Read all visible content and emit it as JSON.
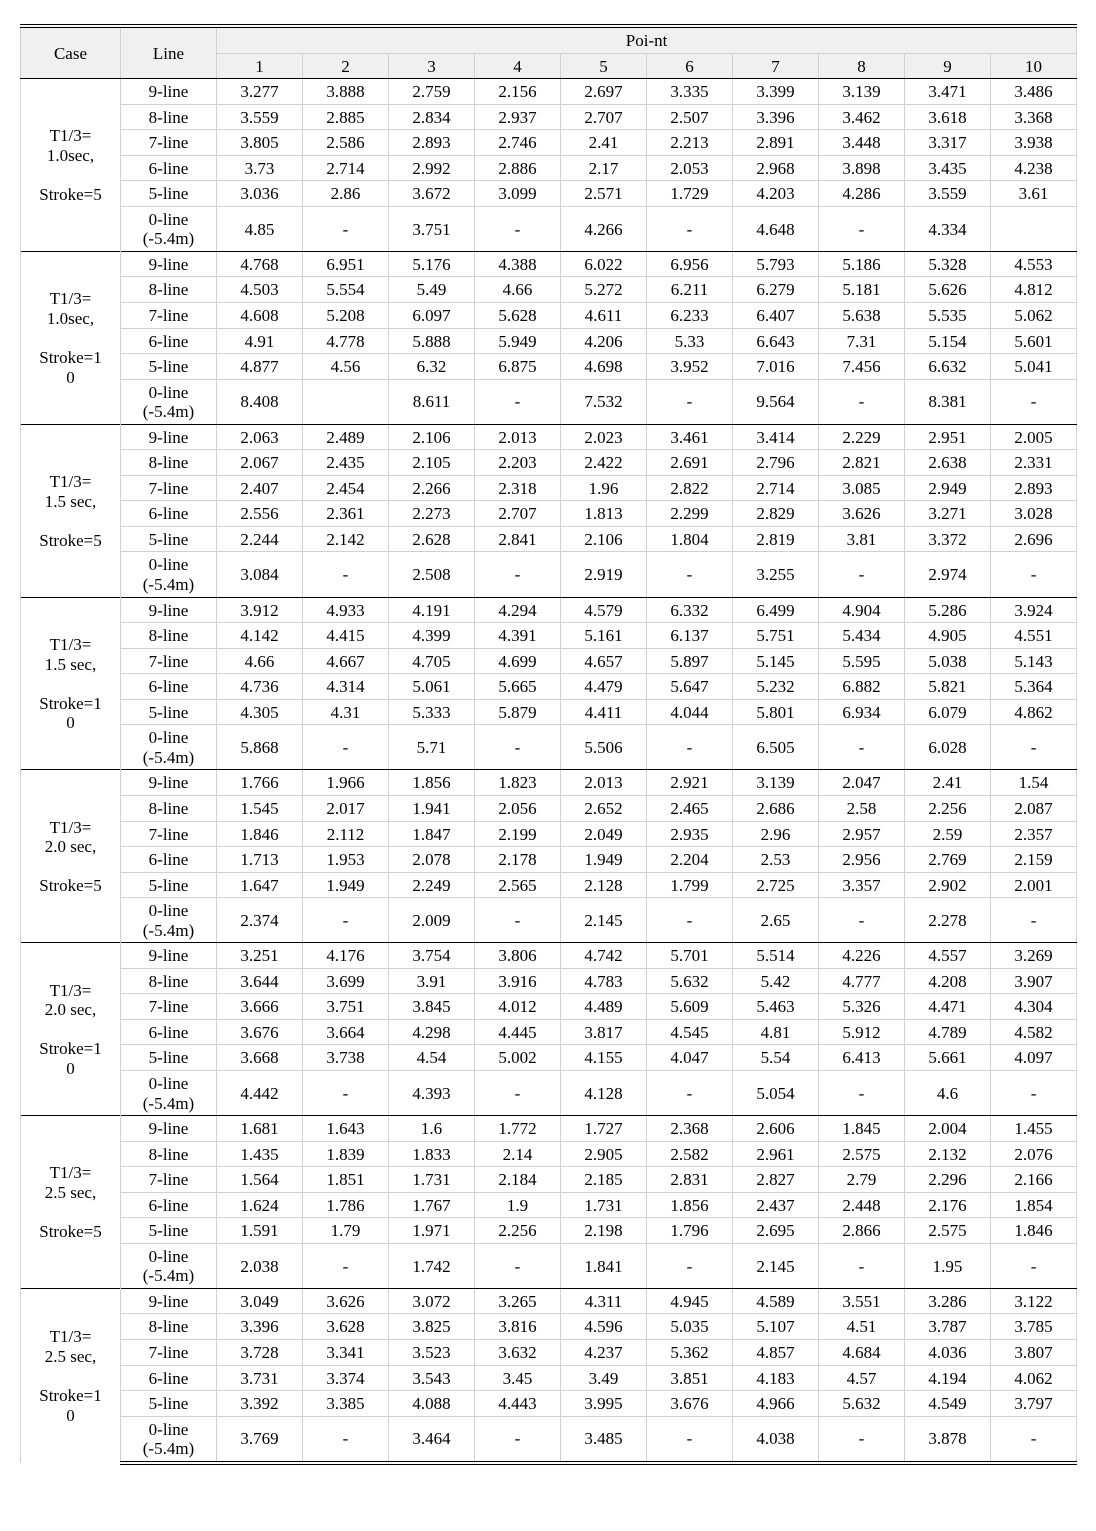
{
  "headers": {
    "case": "Case",
    "line": "Line",
    "point": "Poi-nt",
    "points": [
      "1",
      "2",
      "3",
      "4",
      "5",
      "6",
      "7",
      "8",
      "9",
      "10"
    ]
  },
  "line_labels": {
    "l9": "9-line",
    "l8": "8-line",
    "l7": "7-line",
    "l6": "6-line",
    "l5": "5-line",
    "l0a": "0-line",
    "l0b": "(-5.4m)"
  },
  "dash": "-",
  "groups": [
    {
      "case_lines": [
        "T1/3=",
        "1.0sec,",
        "",
        "Stroke=5"
      ],
      "rows": [
        {
          "line": "l9",
          "v": [
            "3.277",
            "3.888",
            "2.759",
            "2.156",
            "2.697",
            "3.335",
            "3.399",
            "3.139",
            "3.471",
            "3.486"
          ]
        },
        {
          "line": "l8",
          "v": [
            "3.559",
            "2.885",
            "2.834",
            "2.937",
            "2.707",
            "2.507",
            "3.396",
            "3.462",
            "3.618",
            "3.368"
          ]
        },
        {
          "line": "l7",
          "v": [
            "3.805",
            "2.586",
            "2.893",
            "2.746",
            "2.41",
            "2.213",
            "2.891",
            "3.448",
            "3.317",
            "3.938"
          ]
        },
        {
          "line": "l6",
          "v": [
            "3.73",
            "2.714",
            "2.992",
            "2.886",
            "2.17",
            "2.053",
            "2.968",
            "3.898",
            "3.435",
            "4.238"
          ]
        },
        {
          "line": "l5",
          "v": [
            "3.036",
            "2.86",
            "3.672",
            "3.099",
            "2.571",
            "1.729",
            "4.203",
            "4.286",
            "3.559",
            "3.61"
          ]
        },
        {
          "line": "l0",
          "v": [
            "4.85",
            "-",
            "3.751",
            "-",
            "4.266",
            "-",
            "4.648",
            "-",
            "4.334",
            ""
          ]
        }
      ]
    },
    {
      "case_lines": [
        "T1/3=",
        "1.0sec,",
        "",
        "Stroke=1",
        "0"
      ],
      "rows": [
        {
          "line": "l9",
          "v": [
            "4.768",
            "6.951",
            "5.176",
            "4.388",
            "6.022",
            "6.956",
            "5.793",
            "5.186",
            "5.328",
            "4.553"
          ]
        },
        {
          "line": "l8",
          "v": [
            "4.503",
            "5.554",
            "5.49",
            "4.66",
            "5.272",
            "6.211",
            "6.279",
            "5.181",
            "5.626",
            "4.812"
          ]
        },
        {
          "line": "l7",
          "v": [
            "4.608",
            "5.208",
            "6.097",
            "5.628",
            "4.611",
            "6.233",
            "6.407",
            "5.638",
            "5.535",
            "5.062"
          ]
        },
        {
          "line": "l6",
          "v": [
            "4.91",
            "4.778",
            "5.888",
            "5.949",
            "4.206",
            "5.33",
            "6.643",
            "7.31",
            "5.154",
            "5.601"
          ]
        },
        {
          "line": "l5",
          "v": [
            "4.877",
            "4.56",
            "6.32",
            "6.875",
            "4.698",
            "3.952",
            "7.016",
            "7.456",
            "6.632",
            "5.041"
          ]
        },
        {
          "line": "l0",
          "v": [
            "8.408",
            "",
            "8.611",
            "-",
            "7.532",
            "-",
            "9.564",
            "-",
            "8.381",
            "-"
          ]
        }
      ]
    },
    {
      "case_lines": [
        "T1/3=",
        "1.5 sec,",
        "",
        "Stroke=5"
      ],
      "rows": [
        {
          "line": "l9",
          "v": [
            "2.063",
            "2.489",
            "2.106",
            "2.013",
            "2.023",
            "3.461",
            "3.414",
            "2.229",
            "2.951",
            "2.005"
          ]
        },
        {
          "line": "l8",
          "v": [
            "2.067",
            "2.435",
            "2.105",
            "2.203",
            "2.422",
            "2.691",
            "2.796",
            "2.821",
            "2.638",
            "2.331"
          ]
        },
        {
          "line": "l7",
          "v": [
            "2.407",
            "2.454",
            "2.266",
            "2.318",
            "1.96",
            "2.822",
            "2.714",
            "3.085",
            "2.949",
            "2.893"
          ]
        },
        {
          "line": "l6",
          "v": [
            "2.556",
            "2.361",
            "2.273",
            "2.707",
            "1.813",
            "2.299",
            "2.829",
            "3.626",
            "3.271",
            "3.028"
          ]
        },
        {
          "line": "l5",
          "v": [
            "2.244",
            "2.142",
            "2.628",
            "2.841",
            "2.106",
            "1.804",
            "2.819",
            "3.81",
            "3.372",
            "2.696"
          ]
        },
        {
          "line": "l0",
          "v": [
            "3.084",
            "-",
            "2.508",
            "-",
            "2.919",
            "-",
            "3.255",
            "-",
            "2.974",
            "-"
          ]
        }
      ]
    },
    {
      "case_lines": [
        "T1/3=",
        "1.5 sec,",
        "",
        "Stroke=1",
        "0"
      ],
      "rows": [
        {
          "line": "l9",
          "v": [
            "3.912",
            "4.933",
            "4.191",
            "4.294",
            "4.579",
            "6.332",
            "6.499",
            "4.904",
            "5.286",
            "3.924"
          ]
        },
        {
          "line": "l8",
          "v": [
            "4.142",
            "4.415",
            "4.399",
            "4.391",
            "5.161",
            "6.137",
            "5.751",
            "5.434",
            "4.905",
            "4.551"
          ]
        },
        {
          "line": "l7",
          "v": [
            "4.66",
            "4.667",
            "4.705",
            "4.699",
            "4.657",
            "5.897",
            "5.145",
            "5.595",
            "5.038",
            "5.143"
          ]
        },
        {
          "line": "l6",
          "v": [
            "4.736",
            "4.314",
            "5.061",
            "5.665",
            "4.479",
            "5.647",
            "5.232",
            "6.882",
            "5.821",
            "5.364"
          ]
        },
        {
          "line": "l5",
          "v": [
            "4.305",
            "4.31",
            "5.333",
            "5.879",
            "4.411",
            "4.044",
            "5.801",
            "6.934",
            "6.079",
            "4.862"
          ]
        },
        {
          "line": "l0",
          "v": [
            "5.868",
            "-",
            "5.71",
            "-",
            "5.506",
            "-",
            "6.505",
            "-",
            "6.028",
            "-"
          ]
        }
      ]
    },
    {
      "case_lines": [
        "T1/3=",
        "2.0 sec,",
        "",
        "Stroke=5"
      ],
      "rows": [
        {
          "line": "l9",
          "v": [
            "1.766",
            "1.966",
            "1.856",
            "1.823",
            "2.013",
            "2.921",
            "3.139",
            "2.047",
            "2.41",
            "1.54"
          ]
        },
        {
          "line": "l8",
          "v": [
            "1.545",
            "2.017",
            "1.941",
            "2.056",
            "2.652",
            "2.465",
            "2.686",
            "2.58",
            "2.256",
            "2.087"
          ]
        },
        {
          "line": "l7",
          "v": [
            "1.846",
            "2.112",
            "1.847",
            "2.199",
            "2.049",
            "2.935",
            "2.96",
            "2.957",
            "2.59",
            "2.357"
          ]
        },
        {
          "line": "l6",
          "v": [
            "1.713",
            "1.953",
            "2.078",
            "2.178",
            "1.949",
            "2.204",
            "2.53",
            "2.956",
            "2.769",
            "2.159"
          ]
        },
        {
          "line": "l5",
          "v": [
            "1.647",
            "1.949",
            "2.249",
            "2.565",
            "2.128",
            "1.799",
            "2.725",
            "3.357",
            "2.902",
            "2.001"
          ]
        },
        {
          "line": "l0",
          "v": [
            "2.374",
            "-",
            "2.009",
            "-",
            "2.145",
            "-",
            "2.65",
            "-",
            "2.278",
            "-"
          ]
        }
      ]
    },
    {
      "case_lines": [
        "T1/3=",
        "2.0 sec,",
        "",
        "Stroke=1",
        "0"
      ],
      "rows": [
        {
          "line": "l9",
          "v": [
            "3.251",
            "4.176",
            "3.754",
            "3.806",
            "4.742",
            "5.701",
            "5.514",
            "4.226",
            "4.557",
            "3.269"
          ]
        },
        {
          "line": "l8",
          "v": [
            "3.644",
            "3.699",
            "3.91",
            "3.916",
            "4.783",
            "5.632",
            "5.42",
            "4.777",
            "4.208",
            "3.907"
          ]
        },
        {
          "line": "l7",
          "v": [
            "3.666",
            "3.751",
            "3.845",
            "4.012",
            "4.489",
            "5.609",
            "5.463",
            "5.326",
            "4.471",
            "4.304"
          ]
        },
        {
          "line": "l6",
          "v": [
            "3.676",
            "3.664",
            "4.298",
            "4.445",
            "3.817",
            "4.545",
            "4.81",
            "5.912",
            "4.789",
            "4.582"
          ]
        },
        {
          "line": "l5",
          "v": [
            "3.668",
            "3.738",
            "4.54",
            "5.002",
            "4.155",
            "4.047",
            "5.54",
            "6.413",
            "5.661",
            "4.097"
          ]
        },
        {
          "line": "l0",
          "v": [
            "4.442",
            "-",
            "4.393",
            "-",
            "4.128",
            "-",
            "5.054",
            "-",
            "4.6",
            "-"
          ]
        }
      ]
    },
    {
      "case_lines": [
        "T1/3=",
        "2.5 sec,",
        "",
        "Stroke=5"
      ],
      "rows": [
        {
          "line": "l9",
          "v": [
            "1.681",
            "1.643",
            "1.6",
            "1.772",
            "1.727",
            "2.368",
            "2.606",
            "1.845",
            "2.004",
            "1.455"
          ]
        },
        {
          "line": "l8",
          "v": [
            "1.435",
            "1.839",
            "1.833",
            "2.14",
            "2.905",
            "2.582",
            "2.961",
            "2.575",
            "2.132",
            "2.076"
          ]
        },
        {
          "line": "l7",
          "v": [
            "1.564",
            "1.851",
            "1.731",
            "2.184",
            "2.185",
            "2.831",
            "2.827",
            "2.79",
            "2.296",
            "2.166"
          ]
        },
        {
          "line": "l6",
          "v": [
            "1.624",
            "1.786",
            "1.767",
            "1.9",
            "1.731",
            "1.856",
            "2.437",
            "2.448",
            "2.176",
            "1.854"
          ]
        },
        {
          "line": "l5",
          "v": [
            "1.591",
            "1.79",
            "1.971",
            "2.256",
            "2.198",
            "1.796",
            "2.695",
            "2.866",
            "2.575",
            "1.846"
          ]
        },
        {
          "line": "l0",
          "v": [
            "2.038",
            "-",
            "1.742",
            "-",
            "1.841",
            "-",
            "2.145",
            "-",
            "1.95",
            "-"
          ]
        }
      ]
    },
    {
      "case_lines": [
        "T1/3=",
        "2.5 sec,",
        "",
        "Stroke=1",
        "0"
      ],
      "rows": [
        {
          "line": "l9",
          "v": [
            "3.049",
            "3.626",
            "3.072",
            "3.265",
            "4.311",
            "4.945",
            "4.589",
            "3.551",
            "3.286",
            "3.122"
          ]
        },
        {
          "line": "l8",
          "v": [
            "3.396",
            "3.628",
            "3.825",
            "3.816",
            "4.596",
            "5.035",
            "5.107",
            "4.51",
            "3.787",
            "3.785"
          ]
        },
        {
          "line": "l7",
          "v": [
            "3.728",
            "3.341",
            "3.523",
            "3.632",
            "4.237",
            "5.362",
            "4.857",
            "4.684",
            "4.036",
            "3.807"
          ]
        },
        {
          "line": "l6",
          "v": [
            "3.731",
            "3.374",
            "3.543",
            "3.45",
            "3.49",
            "3.851",
            "4.183",
            "4.57",
            "4.194",
            "4.062"
          ]
        },
        {
          "line": "l5",
          "v": [
            "3.392",
            "3.385",
            "4.088",
            "4.443",
            "3.995",
            "3.676",
            "4.966",
            "5.632",
            "4.549",
            "3.797"
          ]
        },
        {
          "line": "l0",
          "v": [
            "3.769",
            "-",
            "3.464",
            "-",
            "3.485",
            "-",
            "4.038",
            "-",
            "3.878",
            "-"
          ]
        }
      ]
    }
  ]
}
